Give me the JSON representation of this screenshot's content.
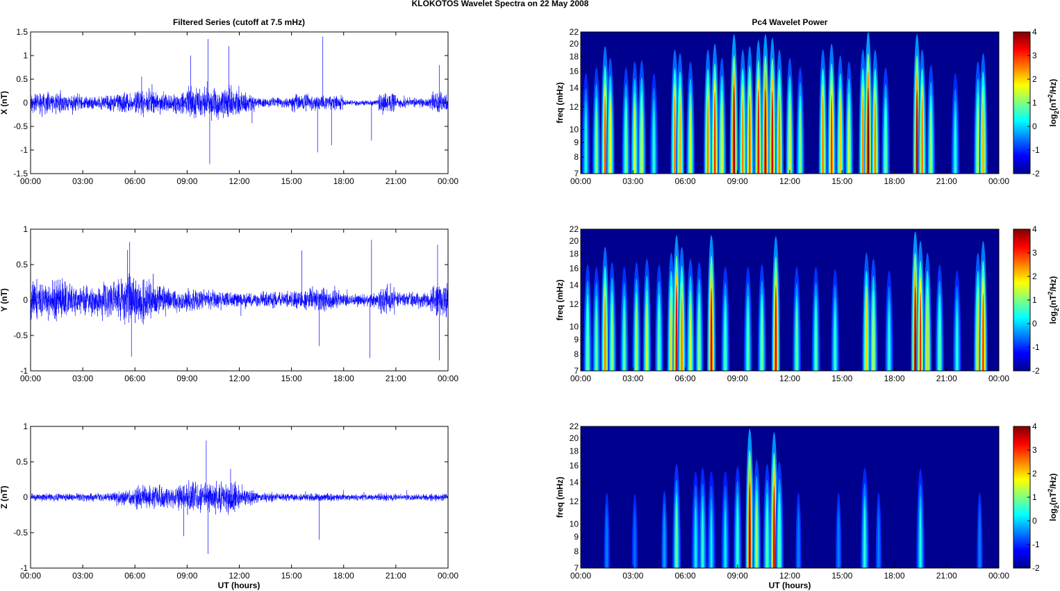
{
  "chart_data": {
    "type": "line",
    "suptitle": "KLOKOTOS Wavelet Spectra on 22 May      2008",
    "left_title": "Filtered Series (cutoff at 7.5 mHz)",
    "right_title": "Pc4 Wavelet Power",
    "xlabel": "UT (hours)",
    "xticks": [
      "00:00",
      "03:00",
      "06:00",
      "09:00",
      "12:00",
      "15:00",
      "18:00",
      "21:00",
      "00:00"
    ],
    "xlim": [
      0,
      24
    ],
    "series": [
      {
        "name": "X",
        "ylabel": "X (nT)",
        "ylim": [
          -1.5,
          1.5
        ],
        "yticks": [
          "1.5",
          "1",
          "0.5",
          "0",
          "-0.5",
          "-1",
          "-1.5"
        ],
        "ytick_values": [
          1.5,
          1,
          0.5,
          0,
          -0.5,
          -1,
          -1.5
        ],
        "envelope": [
          0.2,
          0.2,
          0.15,
          0.12,
          0.15,
          0.2,
          0.25,
          0.2,
          0.2,
          0.3,
          0.3,
          0.3,
          0.2,
          0.1,
          0.1,
          0.2,
          0.15,
          0.15,
          0.05,
          0.05,
          0.2,
          0.1,
          0.1,
          0.2
        ],
        "spikes": [
          [
            9.2,
            1.0
          ],
          [
            10.2,
            1.35
          ],
          [
            10.3,
            -1.3
          ],
          [
            11.4,
            1.2
          ],
          [
            16.8,
            1.4
          ],
          [
            16.5,
            -1.05
          ],
          [
            17.3,
            -0.9
          ],
          [
            23.5,
            0.8
          ],
          [
            19.6,
            -0.8
          ]
        ]
      },
      {
        "name": "Y",
        "ylabel": "Y (nT)",
        "ylim": [
          -1,
          1
        ],
        "yticks": [
          "1",
          "0.5",
          "0",
          "-0.5",
          "-1"
        ],
        "ytick_values": [
          1,
          0.5,
          0,
          -0.5,
          -1
        ],
        "envelope": [
          0.25,
          0.25,
          0.2,
          0.2,
          0.25,
          0.35,
          0.3,
          0.2,
          0.15,
          0.15,
          0.12,
          0.1,
          0.1,
          0.1,
          0.1,
          0.12,
          0.15,
          0.12,
          0.08,
          0.08,
          0.2,
          0.1,
          0.1,
          0.2
        ],
        "spikes": [
          [
            5.7,
            0.82
          ],
          [
            5.8,
            -0.8
          ],
          [
            19.6,
            0.85
          ],
          [
            19.5,
            -0.82
          ],
          [
            23.4,
            0.78
          ],
          [
            23.5,
            -0.85
          ],
          [
            16.6,
            -0.65
          ],
          [
            15.6,
            0.7
          ]
        ]
      },
      {
        "name": "Z",
        "ylabel": "Z (nT)",
        "ylim": [
          -1,
          1
        ],
        "yticks": [
          "1",
          "0.5",
          "0",
          "-0.5",
          "-1"
        ],
        "ytick_values": [
          1,
          0.5,
          0,
          -0.5,
          -1
        ],
        "envelope": [
          0.05,
          0.05,
          0.05,
          0.05,
          0.06,
          0.1,
          0.15,
          0.15,
          0.15,
          0.2,
          0.2,
          0.2,
          0.1,
          0.06,
          0.05,
          0.05,
          0.05,
          0.05,
          0.04,
          0.04,
          0.05,
          0.04,
          0.04,
          0.05
        ],
        "spikes": [
          [
            10.1,
            0.8
          ],
          [
            10.2,
            -0.8
          ],
          [
            11.5,
            0.4
          ],
          [
            8.8,
            -0.55
          ],
          [
            16.6,
            -0.6
          ]
        ]
      }
    ],
    "spectra": {
      "ylabel": "freq (mHz)",
      "yticks": [
        7,
        8,
        9,
        10,
        12,
        14,
        16,
        18,
        20,
        22
      ],
      "ylim": [
        7,
        22
      ],
      "clim": [
        -2,
        4
      ],
      "cbar_ticks": [
        "4",
        "3",
        "2",
        "1",
        "0",
        "-1",
        "-2"
      ],
      "cbar_label": "log2(nT2/Hz)",
      "bursts": [
        [
          [
            0.3,
            0.5
          ],
          [
            0.9,
            1
          ],
          [
            1.4,
            2.8
          ],
          [
            1.7,
            1.8
          ],
          [
            2.6,
            1
          ],
          [
            3.1,
            1.5
          ],
          [
            3.5,
            1.6
          ],
          [
            4.2,
            0.5
          ],
          [
            5.4,
            2.5
          ],
          [
            5.7,
            2.2
          ],
          [
            6.3,
            1.5
          ],
          [
            7.3,
            2.5
          ],
          [
            7.7,
            3
          ],
          [
            8.1,
            1.8
          ],
          [
            8.8,
            3.8
          ],
          [
            9.3,
            2.5
          ],
          [
            9.7,
            2.8
          ],
          [
            10.2,
            3.3
          ],
          [
            10.6,
            3.8
          ],
          [
            11,
            3.5
          ],
          [
            11.4,
            2.5
          ],
          [
            12,
            1.8
          ],
          [
            12.6,
            1
          ],
          [
            13.9,
            2.5
          ],
          [
            14.4,
            3
          ],
          [
            14.9,
            2
          ],
          [
            15.4,
            1.5
          ],
          [
            16.2,
            2.5
          ],
          [
            16.5,
            4
          ],
          [
            16.9,
            2.5
          ],
          [
            17.5,
            1
          ],
          [
            19.3,
            3.8
          ],
          [
            19.6,
            2.5
          ],
          [
            20.1,
            1.2
          ],
          [
            21.5,
            0.5
          ],
          [
            22.8,
            1.5
          ],
          [
            23.1,
            2.2
          ]
        ],
        [
          [
            0.4,
            1
          ],
          [
            0.9,
            0.8
          ],
          [
            1.4,
            2.5
          ],
          [
            1.8,
            1.2
          ],
          [
            2.5,
            0.8
          ],
          [
            3.2,
            1.2
          ],
          [
            3.8,
            1.5
          ],
          [
            4.5,
            1
          ],
          [
            5.2,
            2
          ],
          [
            5.5,
            3.5
          ],
          [
            5.8,
            2.5
          ],
          [
            6.3,
            1.5
          ],
          [
            6.8,
            1.2
          ],
          [
            7.5,
            3.5
          ],
          [
            8.3,
            0.8
          ],
          [
            9.6,
            0.8
          ],
          [
            10.4,
            1
          ],
          [
            11.2,
            3.4
          ],
          [
            12.4,
            0.8
          ],
          [
            13.5,
            0.8
          ],
          [
            14.6,
            0.6
          ],
          [
            16.4,
            2
          ],
          [
            16.8,
            1.5
          ],
          [
            17.7,
            0.5
          ],
          [
            19.2,
            3.8
          ],
          [
            19.5,
            3
          ],
          [
            19.9,
            2
          ],
          [
            20.6,
            1
          ],
          [
            21.6,
            0.5
          ],
          [
            22.8,
            2
          ],
          [
            23.1,
            3
          ]
        ],
        [
          [
            1.5,
            -0.5
          ],
          [
            3.1,
            -0.6
          ],
          [
            4.8,
            -0.3
          ],
          [
            5.5,
            0.8
          ],
          [
            6.6,
            0.2
          ],
          [
            7,
            0.5
          ],
          [
            7.5,
            0.2
          ],
          [
            8.3,
            0.2
          ],
          [
            9,
            0.6
          ],
          [
            9.7,
            3.8
          ],
          [
            10.1,
            1.2
          ],
          [
            10.7,
            0.8
          ],
          [
            11.1,
            3.5
          ],
          [
            11.4,
            1
          ],
          [
            12.5,
            -0.5
          ],
          [
            14.8,
            -0.5
          ],
          [
            16.3,
            0.5
          ],
          [
            17.1,
            -0.5
          ],
          [
            19.5,
            0.4
          ],
          [
            22.9,
            -0.5
          ]
        ]
      ]
    }
  }
}
